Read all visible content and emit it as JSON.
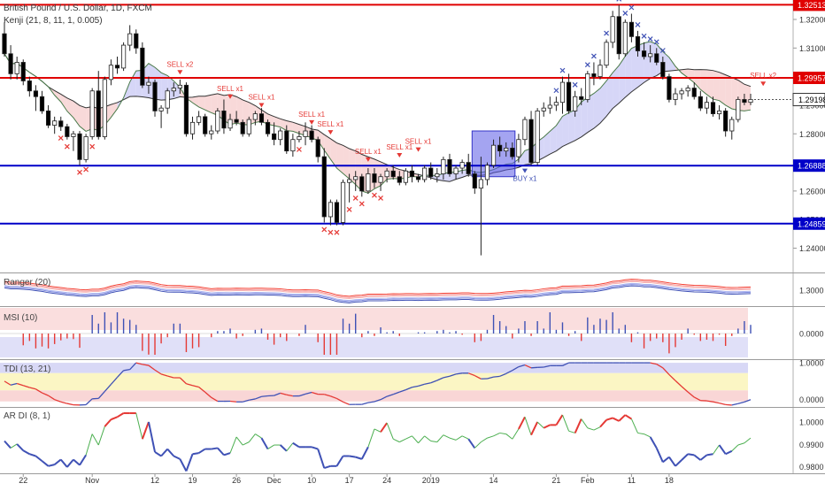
{
  "header": {
    "symbol": "British Pound / U.S. Dollar, 1D, FXCM",
    "indicator": "Kenji (21, 8, 11, 1, 0.005)"
  },
  "panes": {
    "ranger": "Ranger (20)",
    "msi": "MSI (10)",
    "tdi": "TDI (13, 21)",
    "ardi": "AR DI (8, 1)"
  },
  "colors": {
    "up_candle": "#ffffff",
    "down_candle": "#000000",
    "level_red": "#e00000",
    "level_blue": "#0000c8",
    "sell_marker": "#e53935",
    "buy_marker": "#3f51b5",
    "fast_line": "#4a7a4a",
    "slow_line": "#333333"
  },
  "chart_data": [
    {
      "type": "candlestick",
      "title": "British Pound / U.S. Dollar, 1D, FXCM",
      "ylim": [
        1.2315,
        1.3268
      ],
      "x_ticks": [
        "22",
        "Nov",
        "12",
        "19",
        "26",
        "Dec",
        "10",
        "17",
        "24",
        "2019",
        "14",
        "21",
        "Feb",
        "11",
        "18"
      ],
      "y_ticks": [
        1.24,
        1.25,
        1.26,
        1.27,
        1.28,
        1.29,
        1.3,
        1.31,
        1.32
      ],
      "levels": [
        {
          "value": 1.32513,
          "label": "1.32513",
          "color": "#e00000"
        },
        {
          "value": 1.29957,
          "label": "1.29957",
          "color": "#e00000"
        },
        {
          "value": 1.26888,
          "label": "1.26888",
          "color": "#0000c8"
        },
        {
          "value": 1.24859,
          "label": "1.24859",
          "color": "#0000c8"
        }
      ],
      "last_price": {
        "value": 1.29198,
        "label": "1.29198"
      },
      "signals": [
        {
          "text": "SELL x2",
          "index": 28,
          "price": 1.3035
        },
        {
          "text": "SELL x1",
          "index": 36,
          "price": 1.295
        },
        {
          "text": "SELL x1",
          "index": 41,
          "price": 1.292
        },
        {
          "text": "SELL x1",
          "index": 49,
          "price": 1.286
        },
        {
          "text": "SELL x1",
          "index": 52,
          "price": 1.2825
        },
        {
          "text": "SELL x1",
          "index": 58,
          "price": 1.273
        },
        {
          "text": "SELL x1",
          "index": 63,
          "price": 1.2745
        },
        {
          "text": "SELL x1",
          "index": 66,
          "price": 1.2765
        },
        {
          "text": "BUY x1",
          "index": 83,
          "price": 1.2635
        },
        {
          "text": "SELL x2",
          "index": 121,
          "price": 1.2995
        }
      ],
      "candles": [
        [
          1.315,
          1.319,
          1.307,
          1.308
        ],
        [
          1.308,
          1.311,
          1.299,
          1.301
        ],
        [
          1.301,
          1.307,
          1.299,
          1.305
        ],
        [
          1.305,
          1.306,
          1.297,
          1.2985
        ],
        [
          1.2985,
          1.3,
          1.293,
          1.295
        ],
        [
          1.295,
          1.297,
          1.288,
          1.293
        ],
        [
          1.293,
          1.295,
          1.287,
          1.288
        ],
        [
          1.288,
          1.29,
          1.282,
          1.283
        ],
        [
          1.283,
          1.286,
          1.28,
          1.2845
        ],
        [
          1.2845,
          1.286,
          1.281,
          1.2825
        ],
        [
          1.2825,
          1.2835,
          1.278,
          1.279
        ],
        [
          1.279,
          1.281,
          1.274,
          1.28
        ],
        [
          1.28,
          1.281,
          1.269,
          1.271
        ],
        [
          1.271,
          1.28,
          1.27,
          1.279
        ],
        [
          1.279,
          1.296,
          1.278,
          1.295
        ],
        [
          1.295,
          1.302,
          1.278,
          1.279
        ],
        [
          1.279,
          1.3,
          1.278,
          1.299
        ],
        [
          1.299,
          1.306,
          1.297,
          1.304
        ],
        [
          1.304,
          1.307,
          1.301,
          1.303
        ],
        [
          1.303,
          1.312,
          1.302,
          1.311
        ],
        [
          1.311,
          1.318,
          1.309,
          1.315
        ],
        [
          1.315,
          1.3165,
          1.308,
          1.31
        ],
        [
          1.31,
          1.312,
          1.296,
          1.297
        ],
        [
          1.297,
          1.3,
          1.294,
          1.298
        ],
        [
          1.298,
          1.299,
          1.286,
          1.288
        ],
        [
          1.288,
          1.29,
          1.282,
          1.289
        ],
        [
          1.289,
          1.296,
          1.287,
          1.295
        ],
        [
          1.295,
          1.298,
          1.293,
          1.296
        ],
        [
          1.296,
          1.299,
          1.294,
          1.297
        ],
        [
          1.297,
          1.298,
          1.279,
          1.28
        ],
        [
          1.28,
          1.286,
          1.278,
          1.284
        ],
        [
          1.284,
          1.288,
          1.283,
          1.286
        ],
        [
          1.286,
          1.287,
          1.279,
          1.28
        ],
        [
          1.28,
          1.283,
          1.278,
          1.281
        ],
        [
          1.281,
          1.289,
          1.28,
          1.288
        ],
        [
          1.288,
          1.292,
          1.28,
          1.282
        ],
        [
          1.282,
          1.287,
          1.281,
          1.285
        ],
        [
          1.285,
          1.288,
          1.283,
          1.284
        ],
        [
          1.284,
          1.285,
          1.279,
          1.28
        ],
        [
          1.28,
          1.286,
          1.279,
          1.285
        ],
        [
          1.285,
          1.288,
          1.283,
          1.287
        ],
        [
          1.287,
          1.289,
          1.283,
          1.284
        ],
        [
          1.284,
          1.285,
          1.279,
          1.28
        ],
        [
          1.28,
          1.284,
          1.276,
          1.278
        ],
        [
          1.278,
          1.282,
          1.276,
          1.281
        ],
        [
          1.281,
          1.283,
          1.273,
          1.274
        ],
        [
          1.274,
          1.28,
          1.272,
          1.278
        ],
        [
          1.278,
          1.281,
          1.277,
          1.279
        ],
        [
          1.279,
          1.284,
          1.276,
          1.281
        ],
        [
          1.281,
          1.283,
          1.277,
          1.278
        ],
        [
          1.278,
          1.279,
          1.27,
          1.272
        ],
        [
          1.272,
          1.275,
          1.249,
          1.251
        ],
        [
          1.251,
          1.257,
          1.248,
          1.256
        ],
        [
          1.256,
          1.257,
          1.248,
          1.249
        ],
        [
          1.249,
          1.264,
          1.248,
          1.263
        ],
        [
          1.263,
          1.266,
          1.256,
          1.264
        ],
        [
          1.264,
          1.267,
          1.26,
          1.265
        ],
        [
          1.265,
          1.266,
          1.258,
          1.26
        ],
        [
          1.26,
          1.268,
          1.259,
          1.266
        ],
        [
          1.266,
          1.268,
          1.261,
          1.263
        ],
        [
          1.263,
          1.266,
          1.26,
          1.265
        ],
        [
          1.265,
          1.268,
          1.263,
          1.267
        ],
        [
          1.267,
          1.269,
          1.264,
          1.265
        ],
        [
          1.265,
          1.267,
          1.262,
          1.263
        ],
        [
          1.263,
          1.268,
          1.262,
          1.267
        ],
        [
          1.267,
          1.269,
          1.263,
          1.265
        ],
        [
          1.265,
          1.266,
          1.263,
          1.264
        ],
        [
          1.264,
          1.269,
          1.263,
          1.268
        ],
        [
          1.268,
          1.27,
          1.264,
          1.265
        ],
        [
          1.265,
          1.268,
          1.263,
          1.266
        ],
        [
          1.266,
          1.272,
          1.264,
          1.271
        ],
        [
          1.271,
          1.273,
          1.265,
          1.266
        ],
        [
          1.266,
          1.269,
          1.264,
          1.268
        ],
        [
          1.268,
          1.271,
          1.266,
          1.27
        ],
        [
          1.27,
          1.273,
          1.265,
          1.266
        ],
        [
          1.266,
          1.267,
          1.259,
          1.261
        ],
        [
          1.261,
          1.272,
          1.2375,
          1.264
        ],
        [
          1.264,
          1.27,
          1.262,
          1.269
        ],
        [
          1.269,
          1.278,
          1.268,
          1.276
        ],
        [
          1.276,
          1.279,
          1.272,
          1.274
        ],
        [
          1.274,
          1.277,
          1.272,
          1.275
        ],
        [
          1.275,
          1.277,
          1.271,
          1.272
        ],
        [
          1.272,
          1.28,
          1.27,
          1.278
        ],
        [
          1.278,
          1.286,
          1.276,
          1.285
        ],
        [
          1.285,
          1.288,
          1.269,
          1.27
        ],
        [
          1.27,
          1.289,
          1.269,
          1.288
        ],
        [
          1.288,
          1.291,
          1.286,
          1.289
        ],
        [
          1.289,
          1.293,
          1.287,
          1.29
        ],
        [
          1.29,
          1.293,
          1.288,
          1.291
        ],
        [
          1.291,
          1.3,
          1.287,
          1.298
        ],
        [
          1.298,
          1.301,
          1.287,
          1.288
        ],
        [
          1.288,
          1.295,
          1.286,
          1.293
        ],
        [
          1.293,
          1.296,
          1.29,
          1.292
        ],
        [
          1.292,
          1.302,
          1.291,
          1.301
        ],
        [
          1.301,
          1.305,
          1.297,
          1.3
        ],
        [
          1.3,
          1.306,
          1.299,
          1.304
        ],
        [
          1.304,
          1.313,
          1.303,
          1.312
        ],
        [
          1.312,
          1.323,
          1.31,
          1.321
        ],
        [
          1.321,
          1.325,
          1.306,
          1.308
        ],
        [
          1.308,
          1.32,
          1.307,
          1.319
        ],
        [
          1.319,
          1.322,
          1.312,
          1.314
        ],
        [
          1.314,
          1.316,
          1.307,
          1.309
        ],
        [
          1.309,
          1.312,
          1.306,
          1.307
        ],
        [
          1.307,
          1.311,
          1.305,
          1.308
        ],
        [
          1.308,
          1.31,
          1.304,
          1.305
        ],
        [
          1.305,
          1.307,
          1.299,
          1.3
        ],
        [
          1.3,
          1.301,
          1.291,
          1.292
        ],
        [
          1.292,
          1.296,
          1.29,
          1.294
        ],
        [
          1.294,
          1.296,
          1.292,
          1.295
        ],
        [
          1.295,
          1.297,
          1.293,
          1.296
        ],
        [
          1.296,
          1.298,
          1.292,
          1.293
        ],
        [
          1.293,
          1.295,
          1.288,
          1.289
        ],
        [
          1.289,
          1.293,
          1.287,
          1.291
        ],
        [
          1.291,
          1.293,
          1.286,
          1.287
        ],
        [
          1.287,
          1.29,
          1.285,
          1.288
        ],
        [
          1.288,
          1.289,
          1.279,
          1.281
        ],
        [
          1.281,
          1.286,
          1.278,
          1.285
        ],
        [
          1.285,
          1.293,
          1.284,
          1.292
        ],
        [
          1.292,
          1.294,
          1.29,
          1.291
        ],
        [
          1.291,
          1.294,
          1.29,
          1.292
        ]
      ]
    },
    {
      "type": "line",
      "title": "Ranger (20)",
      "y_ticks": [
        1.3
      ],
      "y_tick_labels": [
        "1.3000"
      ],
      "ylim": [
        1.27,
        1.33
      ]
    },
    {
      "type": "bar",
      "title": "MSI (10)",
      "y_ticks": [
        0
      ],
      "y_tick_labels": [
        "0.0000"
      ],
      "ylim": [
        -1,
        1
      ]
    },
    {
      "type": "line",
      "title": "TDI (13, 21)",
      "y_ticks": [
        1,
        0
      ],
      "y_tick_labels": [
        "1.0000",
        "0.0000"
      ],
      "ylim": [
        -0.2,
        1.05
      ]
    },
    {
      "type": "line",
      "title": "AR DI (8, 1)",
      "y_ticks": [
        1.0,
        0.99,
        0.98
      ],
      "y_tick_labels": [
        "1.0000",
        "0.9900",
        "0.9800"
      ],
      "ylim": [
        0.977,
        1.006
      ]
    }
  ]
}
